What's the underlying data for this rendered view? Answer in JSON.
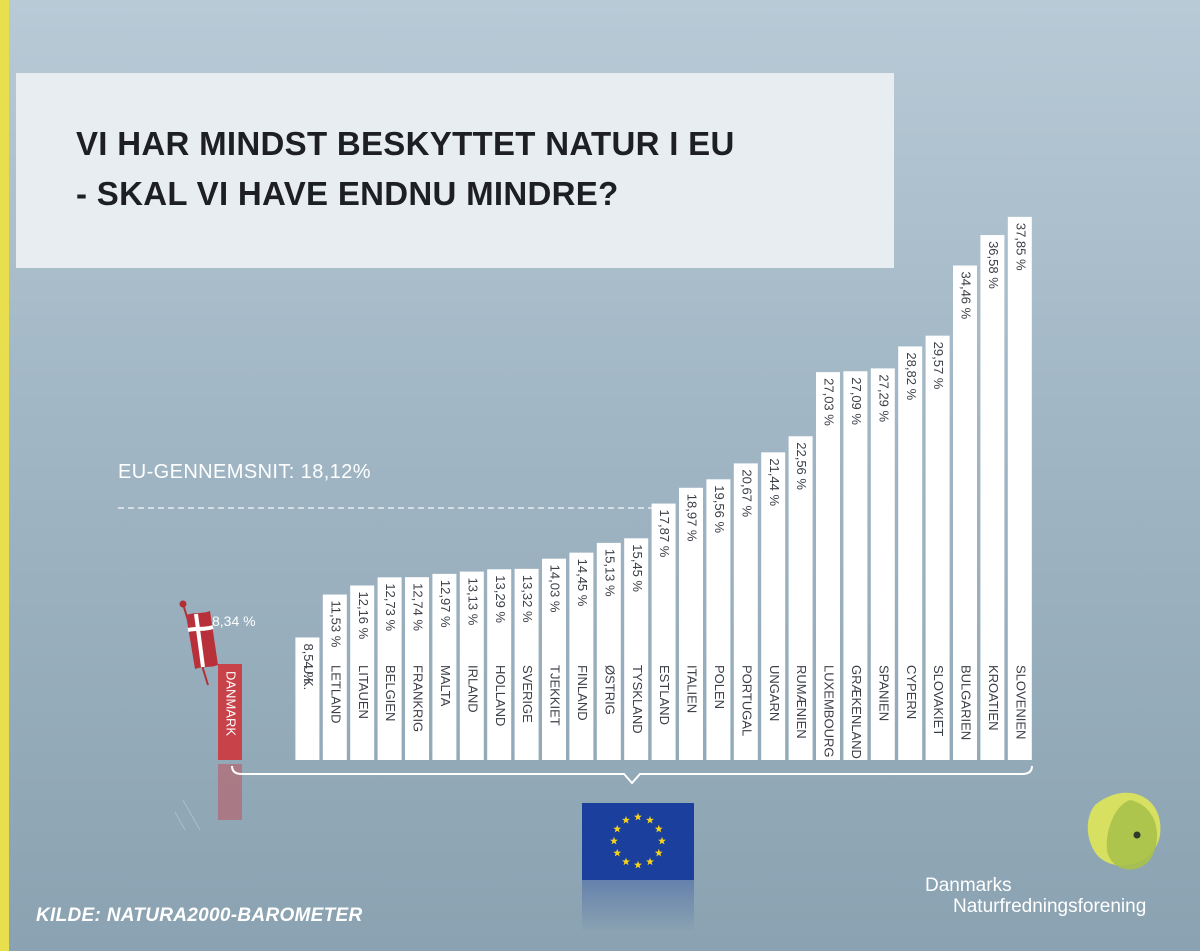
{
  "title": {
    "line1": "VI HAR MINDST BESKYTTET NATUR I EU",
    "line2": "- SKAL VI HAVE ENDNU MINDRE?"
  },
  "colors": {
    "accent_stripe": "#e8df4f",
    "bar_fill": "#ffffff",
    "denmark_bar": "#c8424a",
    "eu_flag": "#1a3f9c",
    "eu_stars": "#f7d417",
    "label_text": "#3b3f46",
    "logo_yellow": "#dbe35c",
    "logo_green": "#a8c24a"
  },
  "eu_average": {
    "label": "EU-GENNEMSNIT: 18,12%",
    "value": 18.12
  },
  "denmark": {
    "label": "DANMARK",
    "value": 8.34,
    "value_text": "8,34 %"
  },
  "chart_data": {
    "type": "bar",
    "title": "VI HAR MINDST BESKYTTET NATUR I EU - SKAL VI HAVE ENDNU MINDRE?",
    "categories": [
      "DANMARK",
      "U.K.",
      "LETLAND",
      "LITAUEN",
      "BELGIEN",
      "FRANKRIG",
      "MALTA",
      "IRLAND",
      "HOLLAND",
      "SVERIGE",
      "TJEKKIET",
      "FINLAND",
      "ØSTRIG",
      "TYSKLAND",
      "ESTLAND",
      "ITALIEN",
      "POLEN",
      "PORTUGAL",
      "UNGARN",
      "RUMÆNIEN",
      "LUXEMBOURG",
      "GRÆKENLAND",
      "SPANIEN",
      "CYPERN",
      "SLOVAKIET",
      "BULGARIEN",
      "KROATIEN",
      "SLOVENIEN"
    ],
    "values": [
      8.34,
      8.54,
      11.53,
      12.16,
      12.73,
      12.74,
      12.97,
      13.13,
      13.29,
      13.32,
      14.03,
      14.45,
      15.13,
      15.45,
      17.87,
      18.97,
      19.56,
      20.67,
      21.44,
      22.56,
      27.03,
      27.09,
      27.29,
      28.82,
      29.57,
      34.46,
      36.58,
      37.85
    ],
    "value_labels": [
      "8,34 %",
      "8,54 %",
      "11,53 %",
      "12,16 %",
      "12,73 %",
      "12,74 %",
      "12,97 %",
      "13,13 %",
      "13,29 %",
      "13,32 %",
      "14,03 %",
      "14,45 %",
      "15,13 %",
      "15,45 %",
      "17,87 %",
      "18,97 %",
      "19,56 %",
      "20,67 %",
      "21,44 %",
      "22,56 %",
      "27,03 %",
      "27,09 %",
      "27,29 %",
      "28,82 %",
      "29,57 %",
      "34,46 %",
      "36,58 %",
      "37,85 %"
    ],
    "reference_line": {
      "label": "EU-GENNEMSNIT: 18,12%",
      "value": 18.12,
      "style": "dashed"
    },
    "xlabel": "",
    "ylabel": "",
    "grid": false,
    "highlight": "DANMARK"
  },
  "source": "KILDE: NATURA2000-BAROMETER",
  "brand": {
    "line1": "Danmarks",
    "line2": "Naturfredningsforening"
  }
}
